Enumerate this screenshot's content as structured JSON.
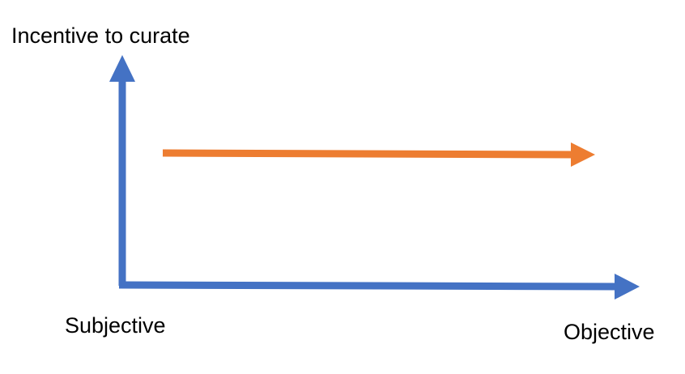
{
  "labels": {
    "y_axis": "Incentive to curate",
    "x_axis_start": "Subjective",
    "x_axis_end": "Objective"
  },
  "colors": {
    "axes": "#4472C4",
    "trend_arrow": "#ED7D31",
    "text": "#000000",
    "background": "#FFFFFF"
  }
}
